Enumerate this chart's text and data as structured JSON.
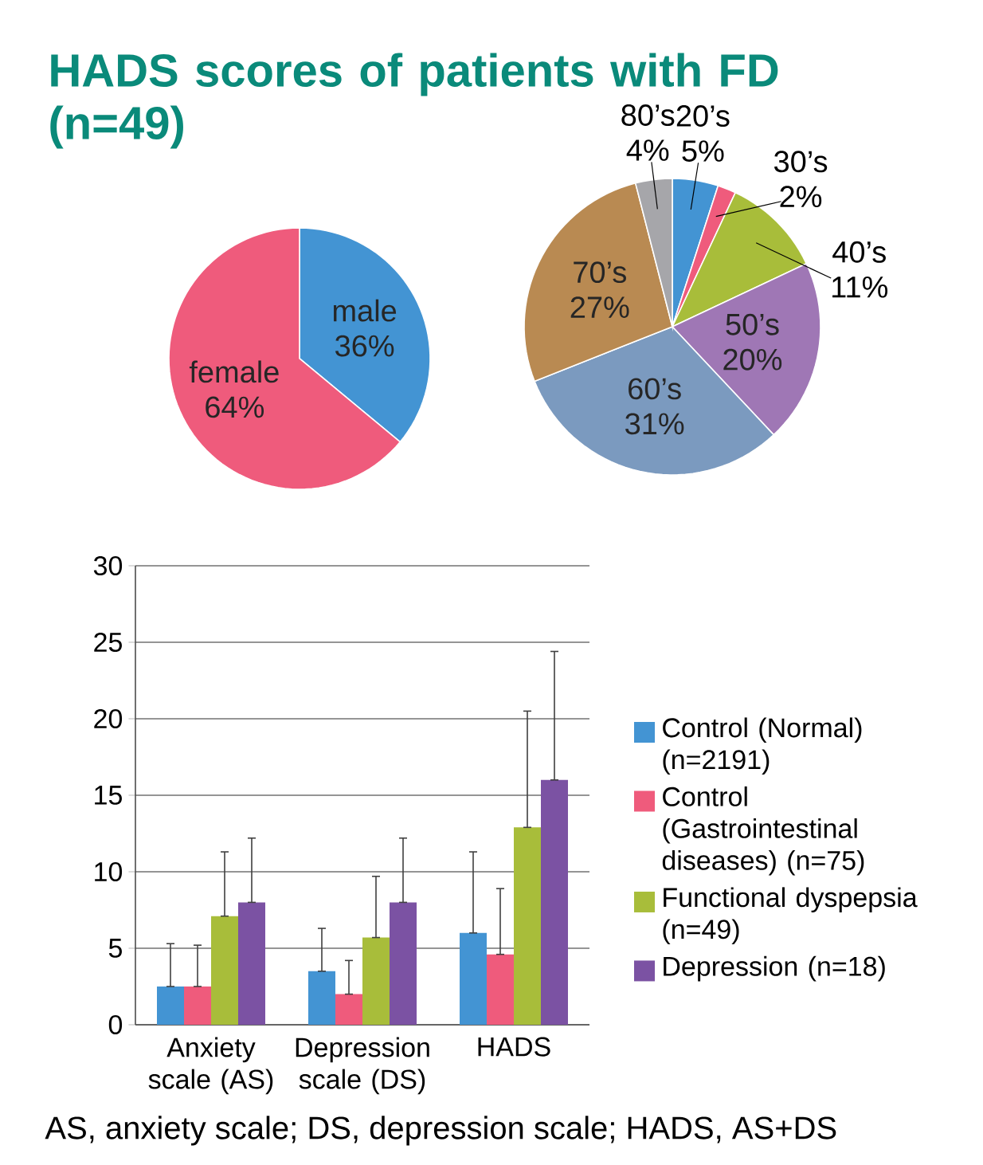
{
  "chart_data": [
    {
      "type": "pie",
      "title": "HADS scores of patients with FD (n=49)",
      "categories": [
        "male",
        "female"
      ],
      "values": [
        36,
        64
      ],
      "value_labels": [
        "36%",
        "64%"
      ],
      "colors": [
        "#4394d3",
        "#ef5b7c"
      ]
    },
    {
      "type": "pie",
      "categories": [
        "20’s",
        "30’s",
        "40’s",
        "50’s",
        "60’s",
        "70’s",
        "80’s"
      ],
      "values": [
        5,
        2,
        11,
        20,
        31,
        27,
        4
      ],
      "value_labels": [
        "5%",
        "2%",
        "11%",
        "20%",
        "31%",
        "27%",
        "4%"
      ],
      "colors": [
        "#4394d3",
        "#ef5b7c",
        "#a8bd3a",
        "#9f77b5",
        "#7b9abf",
        "#b98a52",
        "#a6a6aa"
      ]
    },
    {
      "type": "bar",
      "categories": [
        "Anxiety scale (AS)",
        "Depression scale (DS)",
        "HADS"
      ],
      "ylim": [
        0,
        30
      ],
      "yticks": [
        0,
        5,
        10,
        15,
        20,
        25,
        30
      ],
      "grid": "y",
      "legend": "right",
      "series": [
        {
          "name": "Control (Normal) (n=2191)",
          "color": "#4394d3",
          "values": [
            2.5,
            3.5,
            6.0
          ],
          "errors": [
            [
              2.5,
              5.3
            ],
            [
              3.5,
              6.3
            ],
            [
              6.0,
              11.3
            ]
          ]
        },
        {
          "name": "Control (Gastrointestinal diseases) (n=75)",
          "color": "#ef5b7c",
          "values": [
            2.5,
            2.0,
            4.6
          ],
          "errors": [
            [
              2.5,
              5.2
            ],
            [
              2.0,
              4.2
            ],
            [
              4.6,
              8.9
            ]
          ]
        },
        {
          "name": "Functional dyspepsia (n=49)",
          "color": "#a8bd3a",
          "values": [
            7.1,
            5.7,
            12.9
          ],
          "errors": [
            [
              7.1,
              11.3
            ],
            [
              5.7,
              9.7
            ],
            [
              12.9,
              20.5
            ]
          ]
        },
        {
          "name": "Depression (n=18)",
          "color": "#7b52a3",
          "values": [
            8.0,
            8.0,
            16.0
          ],
          "errors": [
            [
              8.0,
              12.2
            ],
            [
              8.0,
              12.2
            ],
            [
              16.0,
              24.4
            ]
          ]
        }
      ],
      "annotations": [
        "AS, anxiety scale; DS, depression scale; HADS, AS+DS"
      ]
    }
  ]
}
